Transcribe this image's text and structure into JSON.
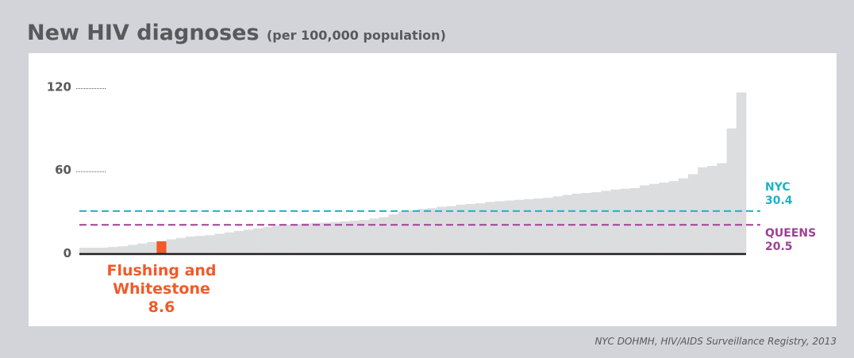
{
  "title": "New HIV diagnoses",
  "subtitle": "(per 100,000 population)",
  "source": "NYC DOHMH, HIV/AIDS Surveillance Registry, 2013",
  "colors": {
    "background": "#d3d4d9",
    "bars": "#dcdddf",
    "highlight": "#f15a29",
    "nyc": "#1cb3c8",
    "queens": "#9e3f95",
    "axis": "#231f20",
    "text": "#58595b"
  },
  "chart_data": {
    "type": "bar",
    "ylim": [
      0,
      130
    ],
    "y_ticks": [
      {
        "label": "0",
        "value": 0
      },
      {
        "label": "60",
        "value": 60
      },
      {
        "label": "120",
        "value": 120
      }
    ],
    "values": [
      4,
      4,
      4,
      4.5,
      5,
      6,
      7,
      8,
      8.6,
      10,
      11,
      12,
      12.5,
      13,
      14,
      15,
      16,
      17,
      18,
      19,
      20,
      20.5,
      21,
      21.5,
      22,
      22,
      22.5,
      23,
      23.5,
      24,
      25,
      26,
      28,
      30,
      31,
      32,
      32.5,
      33.5,
      34,
      35,
      35.5,
      36,
      37,
      37.5,
      38,
      38.5,
      39,
      39.5,
      40,
      41,
      42,
      43,
      43.5,
      44,
      45,
      46,
      46.5,
      47,
      49,
      50,
      51,
      52,
      54,
      57,
      62,
      63,
      65,
      90,
      116
    ],
    "highlight": {
      "index": 8,
      "value": 8.6,
      "label_lines": [
        "Flushing and",
        "Whitestone",
        "8.6"
      ]
    },
    "reference_lines": [
      {
        "name": "NYC",
        "value": 30.4,
        "style": "dashed"
      },
      {
        "name": "QUEENS",
        "value": 20.5,
        "style": "dashed"
      }
    ]
  }
}
